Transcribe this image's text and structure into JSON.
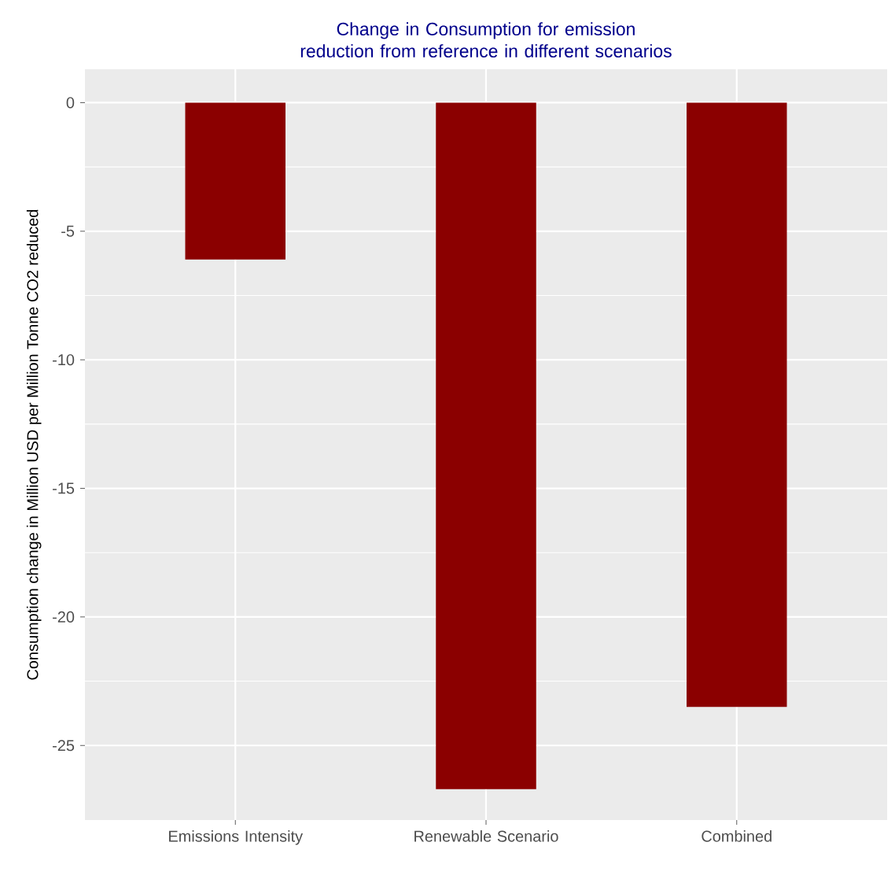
{
  "chart_data": {
    "type": "bar",
    "title": "Change in Consumption for emission reduction from reference in different scenarios",
    "ylabel": "Consumption change in Million USD per Million Tonne CO2 reduced",
    "categories": [
      "Emissions Intensity",
      "Renewable Scenario",
      "Combined"
    ],
    "values": [
      -6.1,
      -26.7,
      -23.5
    ],
    "color": "#8b0000",
    "ylim": [
      -27.9,
      1.3
    ],
    "yticks": [
      -25,
      -20,
      -15,
      -10,
      -5,
      0
    ],
    "grid": true
  }
}
